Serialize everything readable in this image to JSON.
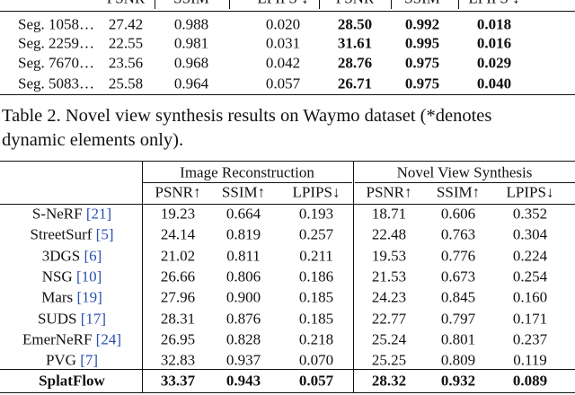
{
  "top_table": {
    "header": [
      "PSNR",
      "SSIM",
      "LPIPS ↓",
      "PSNR",
      "SSIM",
      "LPIPS ↓"
    ],
    "rows": [
      [
        "Seg. 1058…",
        "27.42",
        "0.988",
        "0.020",
        "28.50",
        "0.992",
        "0.018"
      ],
      [
        "Seg. 2259…",
        "22.55",
        "0.981",
        "0.031",
        "31.61",
        "0.995",
        "0.016"
      ],
      [
        "Seg. 7670…",
        "23.56",
        "0.968",
        "0.042",
        "28.76",
        "0.975",
        "0.029"
      ],
      [
        "Seg. 5083…",
        "25.58",
        "0.964",
        "0.057",
        "26.71",
        "0.975",
        "0.040"
      ]
    ]
  },
  "caption": "Table 2. Novel view synthesis results on Waymo dataset (*denotes dynamic elements only).",
  "table": {
    "groups": [
      "Image Reconstruction",
      "Novel View Synthesis"
    ],
    "header": [
      "PSNR↑",
      "SSIM↑",
      "LPIPS↓",
      "PSNR↑",
      "SSIM↑",
      "LPIPS↓"
    ],
    "rows": [
      {
        "method": "S-NeRF",
        "ref": "[21]",
        "values": [
          "19.23",
          "0.664",
          "0.193",
          "18.71",
          "0.606",
          "0.352"
        ]
      },
      {
        "method": "StreetSurf",
        "ref": "[5]",
        "values": [
          "24.14",
          "0.819",
          "0.257",
          "22.48",
          "0.763",
          "0.304"
        ]
      },
      {
        "method": "3DGS",
        "ref": "[6]",
        "values": [
          "21.02",
          "0.811",
          "0.211",
          "19.53",
          "0.776",
          "0.224"
        ]
      },
      {
        "method": "NSG",
        "ref": "[10]",
        "values": [
          "26.66",
          "0.806",
          "0.186",
          "21.53",
          "0.673",
          "0.254"
        ]
      },
      {
        "method": "Mars",
        "ref": "[19]",
        "values": [
          "27.96",
          "0.900",
          "0.185",
          "24.23",
          "0.845",
          "0.160"
        ]
      },
      {
        "method": "SUDS",
        "ref": "[17]",
        "values": [
          "28.31",
          "0.876",
          "0.185",
          "22.77",
          "0.797",
          "0.171"
        ]
      },
      {
        "method": "EmerNeRF",
        "ref": "[24]",
        "values": [
          "26.95",
          "0.828",
          "0.218",
          "25.24",
          "0.801",
          "0.237"
        ]
      },
      {
        "method": "PVG",
        "ref": "[7]",
        "values": [
          "32.83",
          "0.937",
          "0.070",
          "25.25",
          "0.809",
          "0.119"
        ]
      },
      {
        "method": "SplatFlow",
        "values": [
          "33.37",
          "0.943",
          "0.057",
          "28.32",
          "0.932",
          "0.089"
        ]
      }
    ]
  }
}
